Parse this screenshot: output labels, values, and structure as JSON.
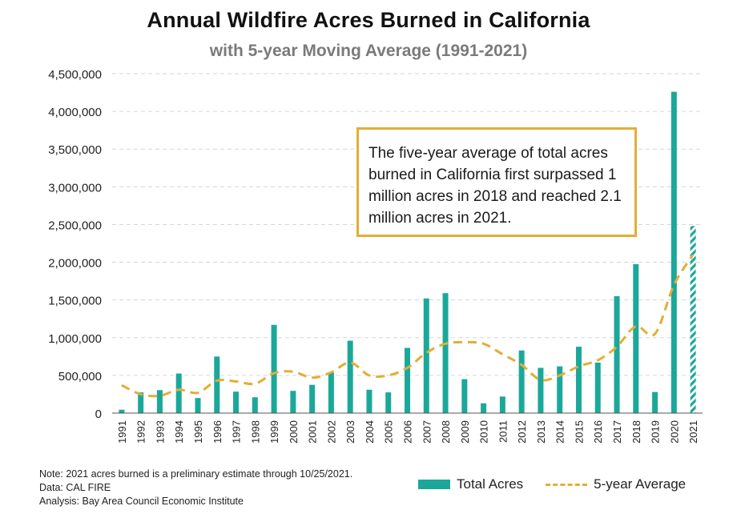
{
  "title": "Annual Wildfire Acres Burned in California",
  "subtitle": "with 5-year Moving Average (1991-2021)",
  "callout": "The five-year average of total acres burned in California first surpassed 1 million acres in 2018 and reached 2.1 million acres in 2021.",
  "notes": [
    "Note: 2021 acres burned is a preliminary estimate through 10/25/2021.",
    "Data: CAL FIRE",
    "Analysis: Bay Area Council Economic Institute"
  ],
  "legend": {
    "bar_label": "Total Acres",
    "line_label": "5-year Average"
  },
  "colors": {
    "bar": "#1ba89a",
    "line": "#e2ae35",
    "grid": "#d6d6d6",
    "axis": "#555555"
  },
  "chart_data": {
    "type": "bar",
    "categories": [
      "1991",
      "1992",
      "1993",
      "1994",
      "1995",
      "1996",
      "1997",
      "1998",
      "1999",
      "2000",
      "2001",
      "2002",
      "2003",
      "2004",
      "2005",
      "2006",
      "2007",
      "2008",
      "2009",
      "2010",
      "2011",
      "2012",
      "2013",
      "2014",
      "2015",
      "2016",
      "2017",
      "2018",
      "2019",
      "2020",
      "2021"
    ],
    "series": [
      {
        "name": "Total Acres",
        "type": "bar",
        "values": [
          45000,
          275000,
          305000,
          525000,
          200000,
          750000,
          285000,
          210000,
          1170000,
          295000,
          375000,
          535000,
          960000,
          310000,
          275000,
          865000,
          1520000,
          1590000,
          450000,
          130000,
          220000,
          830000,
          600000,
          620000,
          880000,
          670000,
          1550000,
          1975000,
          280000,
          4260000,
          2480000
        ],
        "preliminary_last": true
      },
      {
        "name": "5-year Average",
        "type": "line",
        "style": "dashed",
        "values": [
          370000,
          250000,
          230000,
          310000,
          270000,
          430000,
          420000,
          390000,
          530000,
          550000,
          470000,
          540000,
          670000,
          500000,
          500000,
          600000,
          800000,
          920000,
          940000,
          920000,
          780000,
          640000,
          440000,
          500000,
          620000,
          700000,
          880000,
          1150000,
          1050000,
          1700000,
          2100000
        ]
      }
    ],
    "ylim": [
      0,
      4500000
    ],
    "yticks": [
      0,
      500000,
      1000000,
      1500000,
      2000000,
      2500000,
      3000000,
      3500000,
      4000000,
      4500000
    ],
    "ytick_labels": [
      "0",
      "500,000",
      "1,000,000",
      "1,500,000",
      "2,000,000",
      "2,500,000",
      "3,000,000",
      "3,500,000",
      "4,000,000",
      "4,500,000"
    ],
    "grid": "horizontal dashed",
    "legend_position": "bottom-right"
  }
}
